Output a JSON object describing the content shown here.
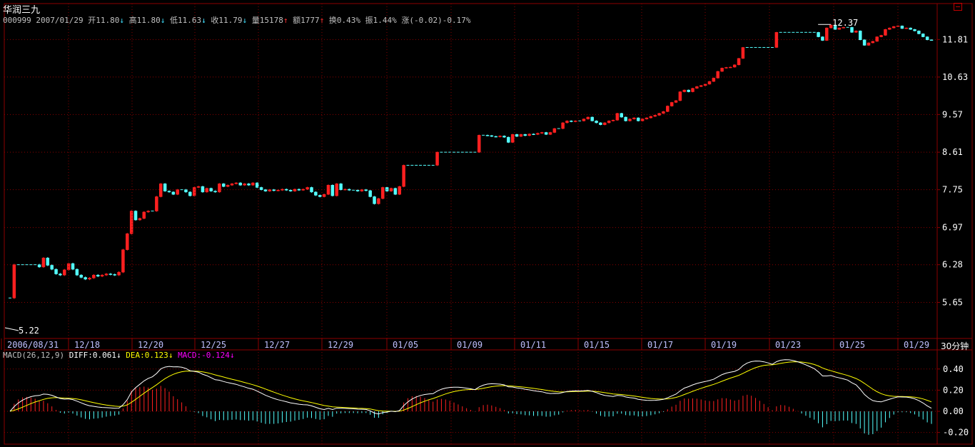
{
  "stock": {
    "name": "华润三九",
    "code": "000999",
    "date": "2007/01/29",
    "open_label": "开11.80",
    "high_label": "高11.80",
    "low_label": "低11.63",
    "close_label": "收11.79",
    "volume_label": "量15178",
    "amount_label": "额1777",
    "turnover_label": "换0.43%",
    "amplitude_label": "振1.44%",
    "change_label": "涨(-0.02)-0.17%"
  },
  "macd_info": {
    "name": "MACD(26,12,9)",
    "diff_label": "DIFF:0.061",
    "dea_label": "DEA:0.123",
    "macd_label": "MACD:-0.124"
  },
  "period_label": "30分钟",
  "colors": {
    "up": "#ff2020",
    "down": "#54ffff",
    "grid": "#8b0000",
    "axis_text": "#ffffff",
    "diff": "#ffffff",
    "dea": "#ffff00",
    "macd_label": "#ff00ff"
  },
  "chart_data": [
    {
      "type": "candlestick",
      "title": "",
      "xlabel": "",
      "ylabel": "",
      "ylim": [
        5.22,
        12.55
      ],
      "y_ticks": [
        "11.81",
        "10.63",
        "9.57",
        "8.61",
        "7.75",
        "6.97",
        "6.28",
        "5.65"
      ],
      "x_tick_labels": [
        "2006/08/31",
        "12/18",
        "12/20",
        "12/25",
        "12/27",
        "12/29",
        "01/05",
        "01/09",
        "01/11",
        "01/15",
        "01/17",
        "01/19",
        "01/23",
        "01/25",
        "01/29"
      ],
      "annotations": {
        "max_label": "12.37",
        "min_label": "5.22"
      },
      "grid": true,
      "closes": [
        5.72,
        6.28,
        6.28,
        6.28,
        6.28,
        6.28,
        6.28,
        6.24,
        6.4,
        6.27,
        6.2,
        6.12,
        6.1,
        6.19,
        6.3,
        6.2,
        6.1,
        6.06,
        6.03,
        6.05,
        6.1,
        6.08,
        6.1,
        6.12,
        6.11,
        6.1,
        6.15,
        6.55,
        6.85,
        7.3,
        7.12,
        7.15,
        7.28,
        7.3,
        7.3,
        7.6,
        7.88,
        7.72,
        7.7,
        7.65,
        7.75,
        7.75,
        7.7,
        7.62,
        7.8,
        7.82,
        7.7,
        7.78,
        7.72,
        7.7,
        7.88,
        7.82,
        7.85,
        7.88,
        7.9,
        7.85,
        7.88,
        7.85,
        7.9,
        7.8,
        7.75,
        7.72,
        7.75,
        7.73,
        7.74,
        7.76,
        7.74,
        7.72,
        7.76,
        7.74,
        7.76,
        7.8,
        7.7,
        7.63,
        7.6,
        7.65,
        7.85,
        7.62,
        7.88,
        7.75,
        7.76,
        7.74,
        7.74,
        7.72,
        7.75,
        7.73,
        7.6,
        7.45,
        7.56,
        7.8,
        7.72,
        7.78,
        7.65,
        7.82,
        8.3,
        8.3,
        8.3,
        8.3,
        8.3,
        8.3,
        8.3,
        8.3,
        8.61,
        8.61,
        8.61,
        8.61,
        8.61,
        8.61,
        8.61,
        8.61,
        8.61,
        8.61,
        9.03,
        9.03,
        9.02,
        9.0,
        8.99,
        9.01,
        8.98,
        8.85,
        9.05,
        9.0,
        9.05,
        9.02,
        9.06,
        9.05,
        9.08,
        9.1,
        9.05,
        9.1,
        9.2,
        9.2,
        9.35,
        9.4,
        9.38,
        9.4,
        9.4,
        9.45,
        9.5,
        9.4,
        9.35,
        9.3,
        9.35,
        9.4,
        9.42,
        9.6,
        9.5,
        9.4,
        9.45,
        9.48,
        9.4,
        9.45,
        9.48,
        9.52,
        9.55,
        9.6,
        9.65,
        9.8,
        9.9,
        9.95,
        10.2,
        10.25,
        10.2,
        10.3,
        10.35,
        10.38,
        10.42,
        10.5,
        10.6,
        10.8,
        10.9,
        10.92,
        10.93,
        11.0,
        11.2,
        11.55,
        11.55,
        11.55,
        11.55,
        11.55,
        11.55,
        11.55,
        11.55,
        12.05,
        12.05,
        12.05,
        12.05,
        12.05,
        12.05,
        12.05,
        12.05,
        12.05,
        12.05,
        11.9,
        11.78,
        12.2,
        12.3,
        12.15,
        12.2,
        12.22,
        12.22,
        12.05,
        12.1,
        11.8,
        11.62,
        11.7,
        11.75,
        11.9,
        11.95,
        12.15,
        12.2,
        12.25,
        12.27,
        12.18,
        12.2,
        12.15,
        12.1,
        12.0,
        11.9,
        11.8,
        11.79
      ]
    },
    {
      "type": "line",
      "title": "",
      "series_names": [
        "DIFF",
        "DEA",
        "MACD"
      ],
      "y_ticks": [
        "0.40",
        "0.20",
        "0.00",
        "-0.20"
      ],
      "ylim": [
        -0.27,
        0.52
      ],
      "grid": true
    }
  ]
}
